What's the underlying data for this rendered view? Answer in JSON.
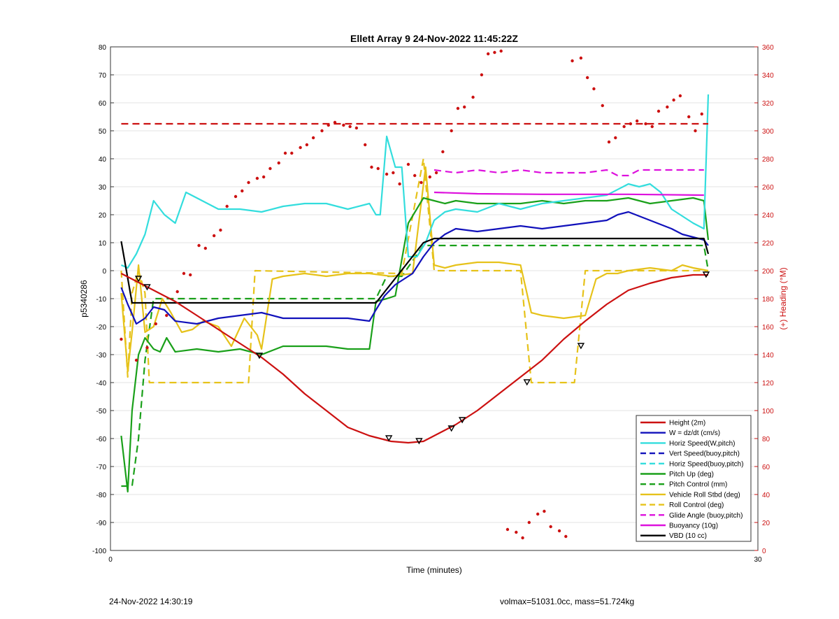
{
  "footer": {
    "timestamp": "24-Nov-2022 14:30:19",
    "info": "volmax=51031.0cc, mass=51.724kg"
  },
  "chart_data": {
    "type": "line",
    "title": "Ellett Array 9 24-Nov-2022 11:45:22Z",
    "xlabel": "Time (minutes)",
    "ylabel": "p5340286",
    "y2label": "(+) Heading (°M)",
    "xlim": [
      0,
      30
    ],
    "ylim": [
      -100,
      80
    ],
    "y2lim": [
      0,
      360
    ],
    "xticks": [
      "0",
      "30"
    ],
    "yticks": [
      "80",
      "70",
      "60",
      "50",
      "40",
      "30",
      "20",
      "10",
      "0",
      "-10",
      "-20",
      "-30",
      "-40",
      "-50",
      "-60",
      "-70",
      "-80",
      "-90",
      "-100"
    ],
    "y2ticks": [
      "360",
      "340",
      "320",
      "300",
      "280",
      "260",
      "240",
      "220",
      "200",
      "180",
      "160",
      "140",
      "120",
      "100",
      "80",
      "60",
      "40",
      "20",
      "0"
    ],
    "grid": true,
    "legend_position": "bottom-right",
    "colors": {
      "red": "#cc1111",
      "blue": "#1111bb",
      "cyan": "#33dddd",
      "green": "#1aa01a",
      "yellow": "#e6c21a",
      "magenta": "#dd11dd",
      "black": "#000000"
    },
    "series": [
      {
        "name": "Height (2m)",
        "color": "red",
        "style": "solid",
        "x": [
          0.5,
          1.0,
          2.0,
          3.0,
          4.0,
          5.0,
          6.0,
          7.0,
          8.0,
          9.0,
          10.0,
          11.0,
          12.0,
          13.0,
          13.8,
          14.5,
          15.0,
          15.5,
          16.0,
          16.5,
          17.0,
          17.5,
          18.0,
          19.0,
          20.0,
          21.0,
          22.0,
          23.0,
          24.0,
          25.0,
          26.0,
          27.0,
          27.7
        ],
        "y": [
          -1,
          -3,
          -7,
          -11,
          -16,
          -21,
          -26,
          -31,
          -37,
          -44,
          -50,
          -56,
          -59,
          -61,
          -61.5,
          -61,
          -59,
          -57,
          -55,
          -52.5,
          -50,
          -47,
          -44,
          -38,
          -32,
          -24.5,
          -18,
          -12,
          -7,
          -4.5,
          -2.5,
          -1.5,
          -1.5
        ]
      },
      {
        "name": "W = dz/dt (cm/s)",
        "color": "blue",
        "style": "solid",
        "x": [
          0.5,
          0.8,
          1.2,
          1.6,
          2.0,
          2.5,
          3.0,
          4.0,
          5.0,
          6.0,
          7.0,
          8.0,
          9.0,
          10.0,
          11.0,
          12.0,
          12.3,
          12.7,
          13.2,
          14.0,
          14.5,
          15.0,
          15.5,
          16.0,
          17.0,
          18.0,
          19.0,
          20.0,
          21.0,
          22.0,
          23.0,
          23.5,
          24.0,
          25.0,
          26.0,
          26.5,
          27.0,
          27.5,
          27.7
        ],
        "y": [
          -6,
          -12,
          -19,
          -17,
          -13,
          -14,
          -18,
          -19,
          -17,
          -16,
          -15,
          -17,
          -17,
          -17,
          -17,
          -18,
          -14,
          -9,
          -5,
          -1,
          5,
          10,
          13,
          15,
          14,
          15,
          16,
          15,
          16,
          17,
          18,
          20,
          21,
          18,
          15,
          13,
          12,
          11,
          9
        ]
      },
      {
        "name": "Horiz Speed(W,pitch)",
        "color": "cyan",
        "style": "solid",
        "x": [
          0.5,
          0.8,
          1.2,
          1.6,
          2.0,
          2.5,
          3.0,
          3.5,
          4.0,
          5.0,
          6.0,
          7.0,
          8.0,
          9.0,
          10.0,
          11.0,
          12.0,
          12.3,
          12.5,
          12.8,
          13.2,
          13.5,
          13.8,
          14.2,
          14.6,
          15.0,
          15.5,
          16.0,
          17.0,
          18.0,
          19.0,
          20.0,
          21.0,
          22.0,
          23.0,
          24.0,
          24.5,
          25.0,
          25.5,
          26.0,
          27.0,
          27.5,
          27.7
        ],
        "y": [
          2,
          1,
          6,
          13,
          25,
          20,
          17,
          28,
          26,
          22,
          22,
          21,
          23,
          24,
          24,
          22,
          24,
          20,
          20,
          48,
          37,
          37,
          5,
          5,
          10,
          18,
          21,
          22,
          21,
          24,
          22,
          24,
          25,
          26,
          27,
          31,
          30,
          31,
          28,
          22,
          17,
          15,
          63
        ]
      },
      {
        "name": "Vert Speed(buoy,pitch)",
        "color": "blue",
        "style": "dashed",
        "x": [],
        "y": []
      },
      {
        "name": "Horiz Speed(buoy,pitch)",
        "color": "cyan",
        "style": "dashed",
        "x": [],
        "y": []
      },
      {
        "name": "Pitch Up (deg)",
        "color": "green",
        "style": "solid",
        "x": [
          0.5,
          0.8,
          1.0,
          1.3,
          1.6,
          2.0,
          2.3,
          2.6,
          3.0,
          4.0,
          5.0,
          6.0,
          7.0,
          8.0,
          9.0,
          10.0,
          11.0,
          12.0,
          12.3,
          12.8,
          13.2,
          13.8,
          14.5,
          15.0,
          15.5,
          16.0,
          17.0,
          18.0,
          19.0,
          20.0,
          21.0,
          22.0,
          23.0,
          24.0,
          25.0,
          26.0,
          27.0,
          27.5,
          27.7
        ],
        "y": [
          -59,
          -79,
          -50,
          -30,
          -24,
          -28,
          -29,
          -24,
          -29,
          -28,
          -29,
          -28,
          -30,
          -27,
          -27,
          -27,
          -28,
          -28,
          -11,
          -10,
          -9,
          17,
          26,
          25,
          24,
          25,
          24,
          24,
          24,
          25,
          24,
          25,
          25,
          26,
          24,
          25,
          26,
          25,
          11
        ]
      },
      {
        "name": "Pitch Control (mm)",
        "color": "green",
        "style": "dashed",
        "x": [
          0.5,
          1.0,
          1.3,
          1.6,
          2.0,
          12.3,
          12.8,
          13.5,
          14.5,
          15.0,
          27.5,
          27.7
        ],
        "y": [
          -77,
          -77,
          -60,
          -32,
          -10,
          -10,
          -2,
          -2,
          9,
          9,
          9,
          0
        ]
      },
      {
        "name": "Vehicle Roll Stbd (deg)",
        "color": "yellow",
        "style": "solid",
        "x": [
          0.5,
          0.8,
          1.0,
          1.3,
          1.6,
          2.0,
          2.4,
          2.8,
          3.3,
          3.8,
          4.3,
          5.0,
          5.6,
          6.2,
          6.8,
          7.0,
          7.5,
          8.0,
          9.0,
          10.0,
          11.0,
          12.0,
          13.0,
          14.0,
          14.6,
          15.0,
          15.5,
          16.0,
          17.0,
          18.0,
          19.0,
          19.5,
          20.0,
          21.0,
          22.0,
          22.5,
          23.0,
          23.5,
          24.0,
          25.0,
          26.0,
          26.5,
          27.0,
          27.7
        ],
        "y": [
          -8,
          -36,
          -22,
          2,
          -22,
          -20,
          -10,
          -15,
          -22,
          -21,
          -18,
          -20,
          -27,
          -17,
          -23,
          -28,
          -3,
          -2,
          -1,
          -2,
          -1,
          -1,
          -2,
          -1,
          37,
          2,
          1,
          2,
          3,
          3,
          2,
          -15,
          -16,
          -17,
          -16,
          -3,
          -1,
          -1,
          0,
          1,
          0,
          2,
          1,
          0
        ]
      },
      {
        "name": "Roll Control (deg)",
        "color": "yellow",
        "style": "dashed",
        "x": [
          0.5,
          0.8,
          1.0,
          1.3,
          1.6,
          1.8,
          6.4,
          6.7,
          13.5,
          14.5,
          15.0,
          16.0,
          19.0,
          19.5,
          21.5,
          22.0,
          27.7
        ],
        "y": [
          0,
          -38,
          -8,
          0,
          -8,
          -40,
          -40,
          0,
          -1,
          40,
          0,
          0,
          0,
          -40,
          -40,
          0,
          0
        ]
      },
      {
        "name": "Glide Angle (buoy,pitch)",
        "color": "magenta",
        "style": "dashed",
        "x": [
          15.0,
          16.0,
          17.0,
          18.0,
          19.0,
          20.0,
          21.0,
          22.0,
          23.0,
          23.5,
          24.0,
          24.5,
          25.0,
          26.0,
          27.0,
          27.5
        ],
        "y": [
          36,
          35,
          36,
          35,
          36,
          35,
          35,
          35,
          36,
          34,
          34,
          36,
          36,
          36,
          36,
          36
        ]
      },
      {
        "name": "Buoyancy (10g)",
        "color": "magenta",
        "style": "solid",
        "x": [
          15.0,
          17.0,
          20.0,
          24.0,
          27.5
        ],
        "y": [
          28,
          27.5,
          27.3,
          27.3,
          27
        ]
      },
      {
        "name": "VBD (10 cc)",
        "color": "black",
        "style": "solid",
        "x": [
          0.5,
          1.0,
          12.3,
          14.5,
          15.0,
          27.5,
          27.7
        ],
        "y": [
          10.5,
          -11.5,
          -11.5,
          10,
          11.5,
          11.5,
          6
        ]
      }
    ],
    "height_markers": {
      "x": [
        1.3,
        1.7,
        6.9,
        12.9,
        14.3,
        15.8,
        16.3,
        19.3,
        21.8,
        27.6
      ],
      "y": [
        -3,
        -6,
        -30.5,
        -60,
        -61,
        -56.5,
        -53.5,
        -40,
        -27,
        -1.5
      ]
    },
    "heading_ref": {
      "name": "Heading reference",
      "color": "red",
      "style": "dashed",
      "x": [
        0.5,
        27.7
      ],
      "y2": [
        305,
        305
      ]
    },
    "heading_points": {
      "color": "red",
      "x": [
        0.5,
        1.2,
        1.7,
        2.1,
        2.6,
        3.1,
        3.4,
        3.7,
        4.1,
        4.4,
        4.8,
        5.1,
        5.4,
        5.8,
        6.1,
        6.4,
        6.8,
        7.1,
        7.4,
        7.8,
        8.1,
        8.4,
        8.8,
        9.1,
        9.4,
        9.8,
        10.1,
        10.4,
        10.8,
        11.1,
        11.4,
        11.8,
        12.1,
        12.4,
        12.8,
        13.1,
        13.4,
        13.8,
        14.1,
        14.4,
        14.8,
        15.1,
        15.4,
        15.8,
        16.1,
        16.4,
        16.8,
        17.2,
        17.5,
        17.8,
        18.1,
        18.4,
        18.8,
        19.1,
        19.4,
        19.8,
        20.1,
        20.4,
        20.8,
        21.1,
        21.4,
        21.8,
        22.1,
        22.4,
        22.8,
        23.1,
        23.4,
        23.8,
        24.1,
        24.4,
        24.8,
        25.1,
        25.4,
        25.8,
        26.1,
        26.4,
        26.8,
        27.1,
        27.4
      ],
      "y": [
        151,
        136,
        145,
        162,
        168,
        185,
        198,
        197,
        218,
        216,
        225,
        229,
        246,
        253,
        257,
        263,
        266,
        267,
        273,
        277,
        284,
        284,
        288,
        290,
        295,
        300,
        304,
        306,
        304,
        303,
        302,
        290,
        274,
        273,
        269,
        270,
        262,
        276,
        268,
        263,
        267,
        270,
        285,
        300,
        316,
        317,
        324,
        340,
        355,
        356,
        357,
        15,
        13,
        9,
        20,
        26,
        28,
        17,
        14,
        10,
        350,
        352,
        338,
        330,
        318,
        292,
        295,
        303,
        305,
        307,
        305,
        303,
        314,
        317,
        322,
        325,
        310,
        300,
        312
      ]
    }
  }
}
